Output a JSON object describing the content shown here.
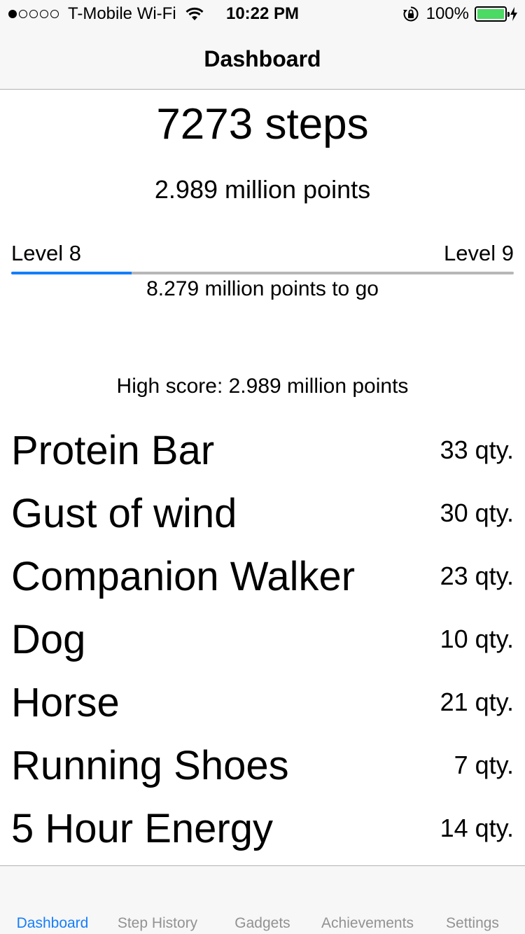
{
  "status_bar": {
    "signal_dots_filled": 1,
    "signal_dots_total": 5,
    "carrier": "T-Mobile Wi-Fi",
    "wifi_icon": "wifi-icon",
    "time": "10:22 PM",
    "lock_icon": "rotation-lock-icon",
    "battery_percent": "100%",
    "battery_level": 1.0,
    "battery_color": "#4cd964",
    "charging_icon": "bolt-icon"
  },
  "nav": {
    "title": "Dashboard"
  },
  "summary": {
    "steps": "7273 steps",
    "points": "2.989 million points"
  },
  "level": {
    "current": "Level 8",
    "next": "Level 9",
    "progress_fraction": 0.24,
    "progress_color": "#157efb",
    "track_color": "#b7b7b7",
    "to_go": "8.279 million points to go"
  },
  "high_score": "High score: 2.989 million points",
  "items": [
    {
      "name": "Protein Bar",
      "qty": "33 qty."
    },
    {
      "name": "Gust of wind",
      "qty": "30 qty."
    },
    {
      "name": "Companion Walker",
      "qty": "23 qty."
    },
    {
      "name": "Dog",
      "qty": "10 qty."
    },
    {
      "name": "Horse",
      "qty": "21 qty."
    },
    {
      "name": "Running Shoes",
      "qty": "7 qty."
    },
    {
      "name": "5 Hour Energy",
      "qty": "14 qty."
    }
  ],
  "tabs": [
    {
      "label": "Dashboard",
      "active": true
    },
    {
      "label": "Step History",
      "active": false
    },
    {
      "label": "Gadgets",
      "active": false
    },
    {
      "label": "Achievements",
      "active": false
    },
    {
      "label": "Settings",
      "active": false
    }
  ],
  "colors": {
    "accent": "#157efb",
    "inactive_tab": "#929292",
    "bar_background": "#f7f7f7"
  }
}
